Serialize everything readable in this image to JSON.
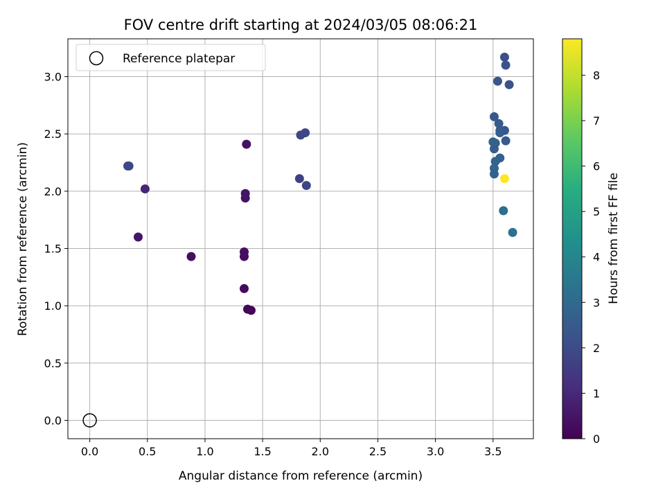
{
  "chart_data": {
    "type": "scatter",
    "title": "FOV centre drift starting at 2024/03/05 08:06:21",
    "xlabel": "Angular distance from reference (arcmin)",
    "ylabel": "Rotation from reference (arcmin)",
    "xlim": [
      -0.19,
      3.85
    ],
    "ylim": [
      -0.16,
      3.33
    ],
    "x_ticks": [
      0.0,
      0.5,
      1.0,
      1.5,
      2.0,
      2.5,
      3.0,
      3.5
    ],
    "x_tick_labels": [
      "0.0",
      "0.5",
      "1.0",
      "1.5",
      "2.0",
      "2.5",
      "3.0",
      "3.5"
    ],
    "y_ticks": [
      0.0,
      0.5,
      1.0,
      1.5,
      2.0,
      2.5,
      3.0
    ],
    "y_tick_labels": [
      "0.0",
      "0.5",
      "1.0",
      "1.5",
      "2.0",
      "2.5",
      "3.0"
    ],
    "grid": true,
    "legend": {
      "placement": "top-left",
      "entries": [
        {
          "label": "Reference platepar",
          "marker": "hollow-circle"
        }
      ]
    },
    "reference_point": {
      "x": 0.0,
      "y": 0.0,
      "color": "#000000"
    },
    "colorbar": {
      "label": "Hours from first FF file",
      "colormap": "viridis",
      "min": 0.0,
      "max": 8.8,
      "ticks": [
        0,
        1,
        2,
        3,
        4,
        5,
        6,
        7,
        8
      ],
      "tick_labels": [
        "0",
        "1",
        "2",
        "3",
        "4",
        "5",
        "6",
        "7",
        "8"
      ]
    },
    "points": [
      {
        "x": 1.4,
        "y": 0.96,
        "c": 0.1
      },
      {
        "x": 1.37,
        "y": 0.97,
        "c": 0.15
      },
      {
        "x": 1.34,
        "y": 1.15,
        "c": 0.25
      },
      {
        "x": 1.34,
        "y": 1.43,
        "c": 0.3
      },
      {
        "x": 1.34,
        "y": 1.47,
        "c": 0.35
      },
      {
        "x": 1.35,
        "y": 1.94,
        "c": 0.45
      },
      {
        "x": 1.35,
        "y": 1.98,
        "c": 0.5
      },
      {
        "x": 1.36,
        "y": 2.41,
        "c": 0.4
      },
      {
        "x": 0.88,
        "y": 1.43,
        "c": 0.35
      },
      {
        "x": 0.42,
        "y": 1.6,
        "c": 0.5
      },
      {
        "x": 0.48,
        "y": 2.02,
        "c": 0.9
      },
      {
        "x": 0.34,
        "y": 2.22,
        "c": 1.8
      },
      {
        "x": 0.33,
        "y": 2.22,
        "c": 1.9
      },
      {
        "x": 1.82,
        "y": 2.11,
        "c": 1.7
      },
      {
        "x": 1.88,
        "y": 2.05,
        "c": 1.8
      },
      {
        "x": 1.83,
        "y": 2.49,
        "c": 1.8
      },
      {
        "x": 1.87,
        "y": 2.51,
        "c": 1.85
      },
      {
        "x": 3.6,
        "y": 3.17,
        "c": 2.1
      },
      {
        "x": 3.61,
        "y": 3.1,
        "c": 2.2
      },
      {
        "x": 3.54,
        "y": 2.96,
        "c": 2.3
      },
      {
        "x": 3.64,
        "y": 2.93,
        "c": 2.2
      },
      {
        "x": 3.51,
        "y": 2.65,
        "c": 2.4
      },
      {
        "x": 3.55,
        "y": 2.59,
        "c": 2.5
      },
      {
        "x": 3.56,
        "y": 2.53,
        "c": 2.4
      },
      {
        "x": 3.6,
        "y": 2.53,
        "c": 2.4
      },
      {
        "x": 3.56,
        "y": 2.51,
        "c": 2.6
      },
      {
        "x": 3.61,
        "y": 2.44,
        "c": 2.5
      },
      {
        "x": 3.5,
        "y": 2.43,
        "c": 2.8
      },
      {
        "x": 3.52,
        "y": 2.42,
        "c": 2.7
      },
      {
        "x": 3.51,
        "y": 2.37,
        "c": 2.6
      },
      {
        "x": 3.56,
        "y": 2.29,
        "c": 2.7
      },
      {
        "x": 3.52,
        "y": 2.26,
        "c": 2.8
      },
      {
        "x": 3.51,
        "y": 2.2,
        "c": 2.9
      },
      {
        "x": 3.51,
        "y": 2.15,
        "c": 2.8
      },
      {
        "x": 3.59,
        "y": 1.83,
        "c": 3.2
      },
      {
        "x": 3.67,
        "y": 1.64,
        "c": 3.3
      },
      {
        "x": 3.6,
        "y": 2.11,
        "c": 8.8
      }
    ]
  }
}
